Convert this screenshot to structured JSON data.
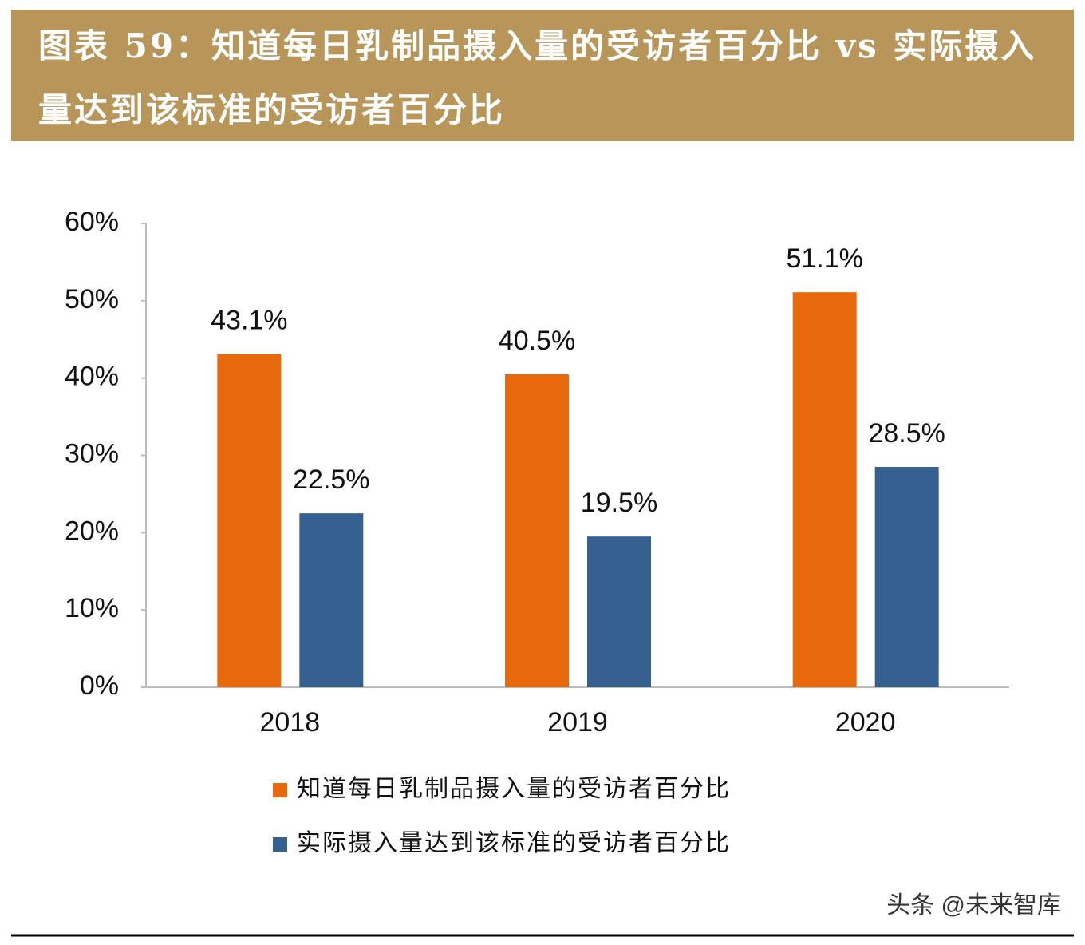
{
  "chart_data": {
    "type": "bar",
    "title": "图表 59：知道每日乳制品摄入量的受访者百分比 vs 实际摄入量达到该标准的受访者百分比",
    "categories": [
      "2018",
      "2019",
      "2020"
    ],
    "series": [
      {
        "name": "知道每日乳制品摄入量的受访者百分比",
        "color": "#E8690B",
        "values": [
          43.1,
          40.5,
          51.1
        ],
        "value_labels": [
          "43.1%",
          "40.5%",
          "51.1%"
        ]
      },
      {
        "name": "实际摄入量达到该标准的受访者百分比",
        "color": "#35608F",
        "values": [
          22.5,
          19.5,
          28.5
        ],
        "value_labels": [
          "22.5%",
          "19.5%",
          "28.5%"
        ]
      }
    ],
    "ylim": [
      0,
      60
    ],
    "yticks": [
      {
        "value": 0,
        "label": "0%"
      },
      {
        "value": 10,
        "label": "10%"
      },
      {
        "value": 20,
        "label": "20%"
      },
      {
        "value": 30,
        "label": "30%"
      },
      {
        "value": 40,
        "label": "40%"
      },
      {
        "value": 50,
        "label": "50%"
      },
      {
        "value": 60,
        "label": "60%"
      }
    ],
    "grid": false,
    "legend": "bottom",
    "watermark": "头条 @未来智库"
  }
}
